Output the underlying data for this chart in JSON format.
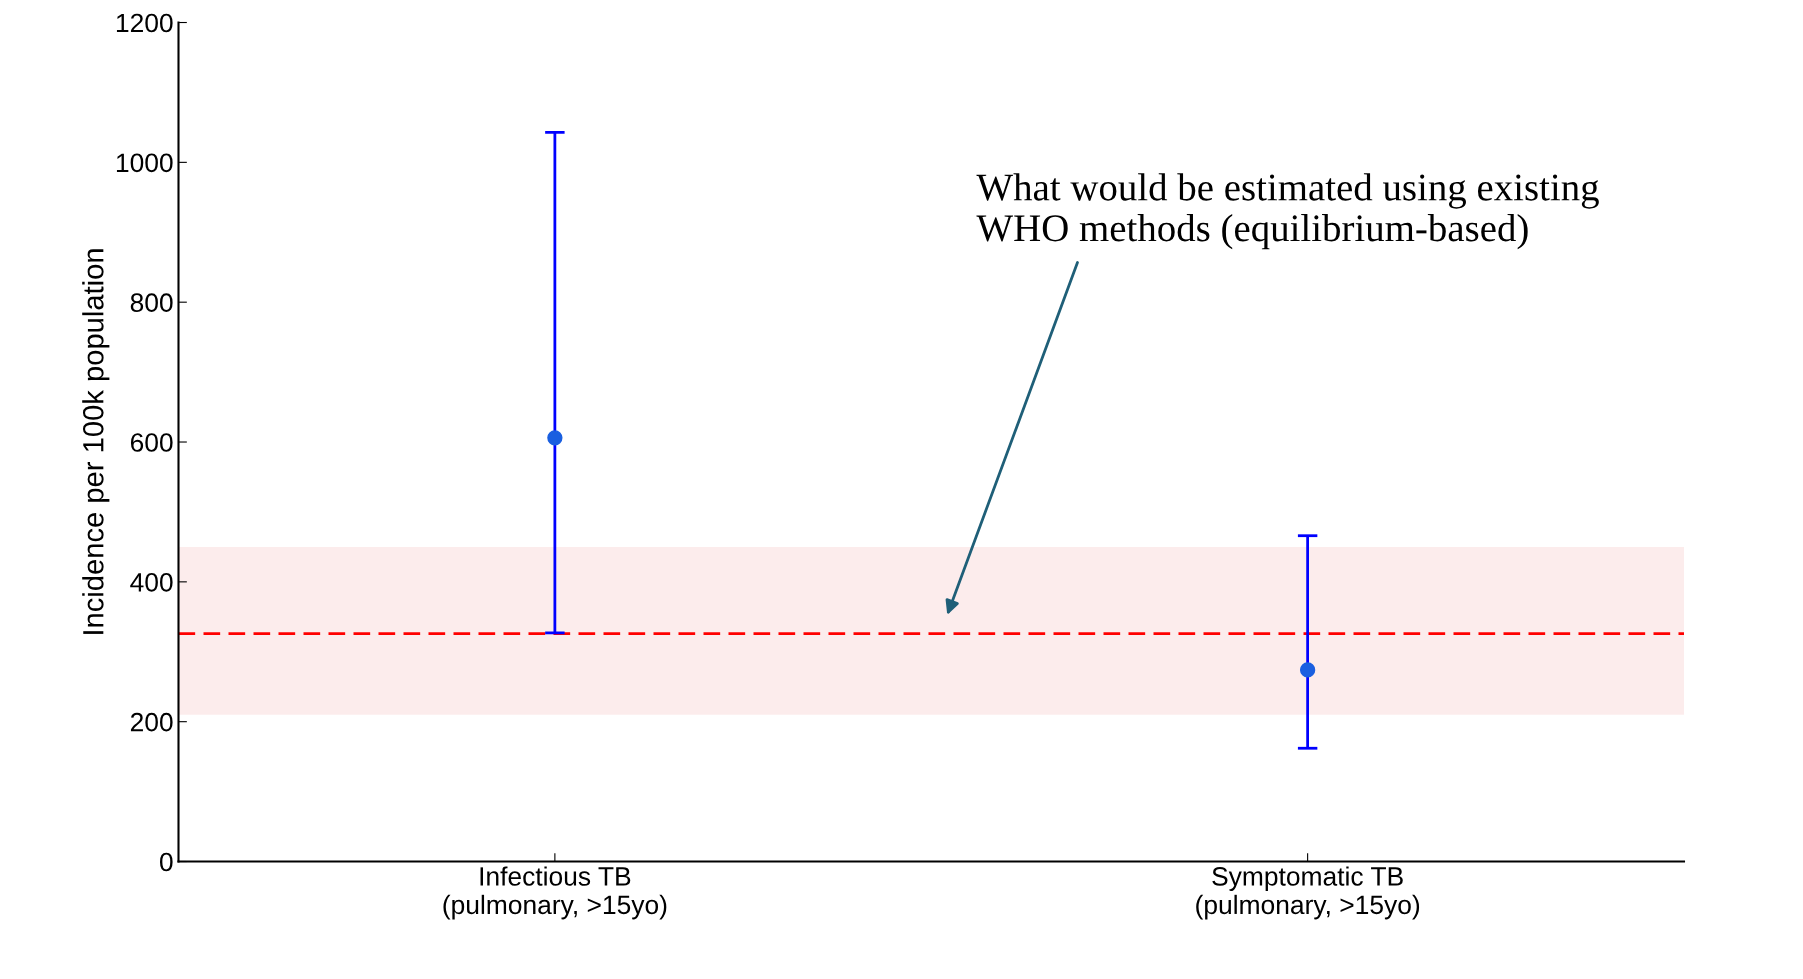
{
  "chart_data": {
    "type": "scatter",
    "ylabel": "Incidence per 100k population",
    "categories": [
      "Infectious TB\n(pulmonary, >15yo)",
      "Symptomatic TB\n(pulmonary, >15yo)"
    ],
    "series": [
      {
        "color": "#1a5fe0",
        "values": [
          606,
          274
        ],
        "errors": [
          [
            327,
            1043
          ],
          [
            162,
            466
          ]
        ]
      }
    ],
    "marker": "circle",
    "ylim": [
      0,
      1200
    ],
    "yticks": [
      0,
      200,
      400,
      600,
      800,
      1000,
      1200
    ],
    "ref_lines": [
      {
        "axis": "y",
        "value": 326,
        "color": "#ff0000",
        "line_style": "dashed"
      }
    ],
    "bands": [
      {
        "axis": "y",
        "from": 210,
        "to": 450,
        "color": "#fcecec"
      }
    ],
    "annotations": [
      "What would be estimated using existing\nWHO methods (equilibrium-based)"
    ],
    "grid": false,
    "legend": false
  }
}
